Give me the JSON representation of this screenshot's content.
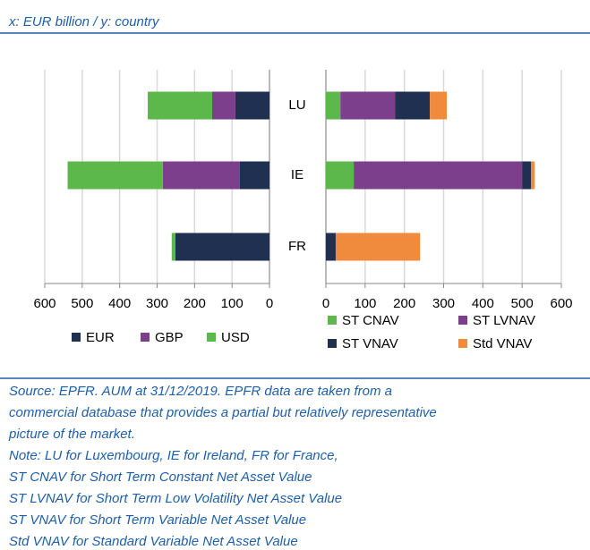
{
  "header": "x: EUR  billion / y: country",
  "chart_data": [
    {
      "type": "bar",
      "orientation": "horizontal",
      "stacked": true,
      "reversed": true,
      "categories": [
        "LU",
        "IE",
        "FR"
      ],
      "xlim": [
        0,
        600
      ],
      "xticks": [
        0,
        100,
        200,
        300,
        400,
        500,
        600
      ],
      "grid": true,
      "series": [
        {
          "name": "EUR",
          "color": "#1f3050",
          "values": [
            91,
            79,
            251
          ]
        },
        {
          "name": "GBP",
          "color": "#7b3f8c",
          "values": [
            62,
            206,
            0
          ]
        },
        {
          "name": "USD",
          "color": "#5cb84a",
          "values": [
            172,
            254,
            10
          ]
        }
      ]
    },
    {
      "type": "bar",
      "orientation": "horizontal",
      "stacked": true,
      "reversed": false,
      "xlim": [
        0,
        600
      ],
      "xticks": [
        0,
        100,
        200,
        300,
        400,
        500,
        600
      ],
      "grid": true,
      "series": [
        {
          "name": "ST CNAV",
          "color": "#5cb84a",
          "values": [
            37,
            71,
            0
          ]
        },
        {
          "name": "ST LVNAV",
          "color": "#7b3f8c",
          "values": [
            139,
            429,
            0
          ]
        },
        {
          "name": "ST VNAV",
          "color": "#1f3050",
          "values": [
            89,
            23,
            25
          ]
        },
        {
          "name": "Std VNAV",
          "color": "#f08a3c",
          "values": [
            43,
            9,
            215
          ]
        }
      ]
    }
  ],
  "notes": [
    "Source: EPFR. AUM at 31/12/2019.  EPFR data are taken from a",
    "commercial database that provides a partial but relatively representative",
    "picture of the market.",
    "Note: LU for Luxembourg, IE for Ireland, FR for France,",
    "ST CNAV for Short Term Constant Net Asset Value",
    "ST LVNAV for Short Term Low Volatility Net Asset Value",
    "ST VNAV for Short Term Variable Net Asset Value",
    "Std VNAV for Standard Variable Net Asset Value"
  ]
}
